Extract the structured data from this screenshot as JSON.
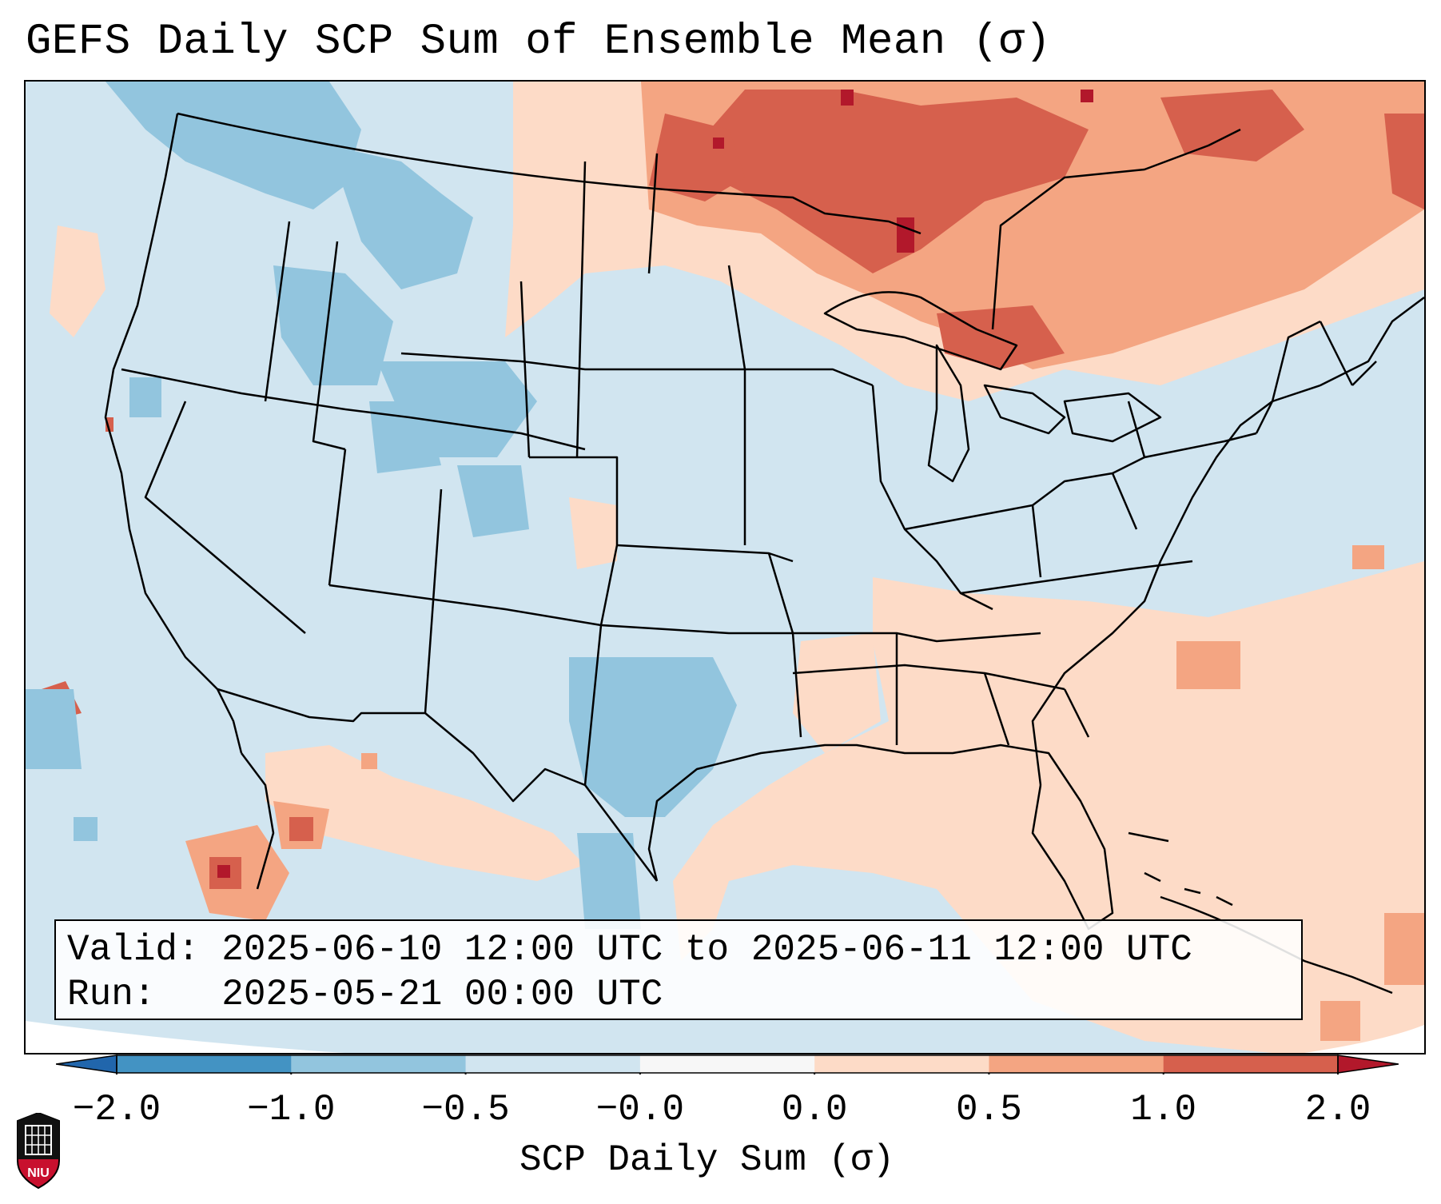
{
  "title": "GEFS Daily SCP Sum of Ensemble Mean (σ)",
  "info": {
    "valid_label": "Valid:",
    "valid_value": "2025-06-10 12:00 UTC to 2025-06-11 12:00 UTC",
    "run_label": "Run:",
    "run_value": "2025-05-21 00:00 UTC"
  },
  "colorbar": {
    "title": "SCP Daily Sum (σ)",
    "ticks": [
      "−2.0",
      "−1.0",
      "−0.5",
      "−0.0",
      "0.0",
      "0.5",
      "1.0",
      "2.0"
    ],
    "bin_colors": [
      "#4393c3",
      "#92c5de",
      "#d1e5f0",
      "#f7f7f7",
      "#fddbc7",
      "#f4a582",
      "#d6604d"
    ],
    "under_color": "#2166ac",
    "over_color": "#b2182b"
  },
  "logo": {
    "text": "NIU"
  },
  "colors": {
    "map_background": "#d1e5f0"
  }
}
